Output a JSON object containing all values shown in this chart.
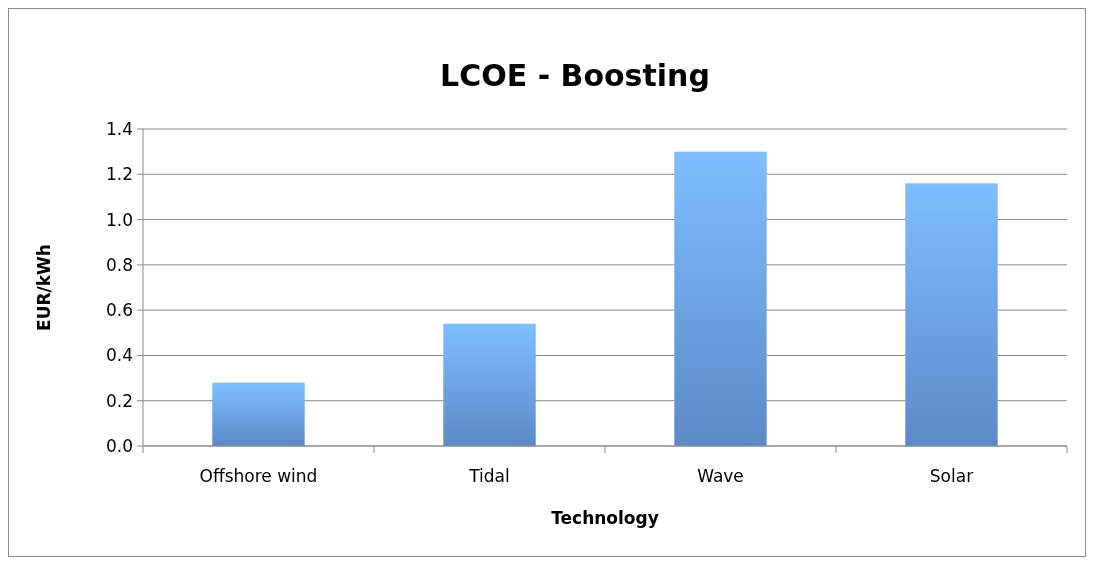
{
  "chart_data": {
    "type": "bar",
    "title": "LCOE - Boosting",
    "xlabel": "Technology",
    "ylabel": "EUR/kWh",
    "categories": [
      "Offshore wind",
      "Tidal",
      "Wave",
      "Solar"
    ],
    "values": [
      0.28,
      0.54,
      1.3,
      1.16
    ],
    "color": "#6a9fe6",
    "ylim": [
      0,
      1.4
    ],
    "yticks": [
      {
        "value": 0,
        "label": "0.0"
      },
      {
        "value": 0.2,
        "label": "0.2"
      },
      {
        "value": 0.4,
        "label": "0.4"
      },
      {
        "value": 0.6,
        "label": "0.6"
      },
      {
        "value": 0.8,
        "label": "0.8"
      },
      {
        "value": 1,
        "label": "1.0"
      },
      {
        "value": 1.2,
        "label": "1.2"
      },
      {
        "value": 1.4,
        "label": "1.4"
      }
    ],
    "grid": "y"
  }
}
